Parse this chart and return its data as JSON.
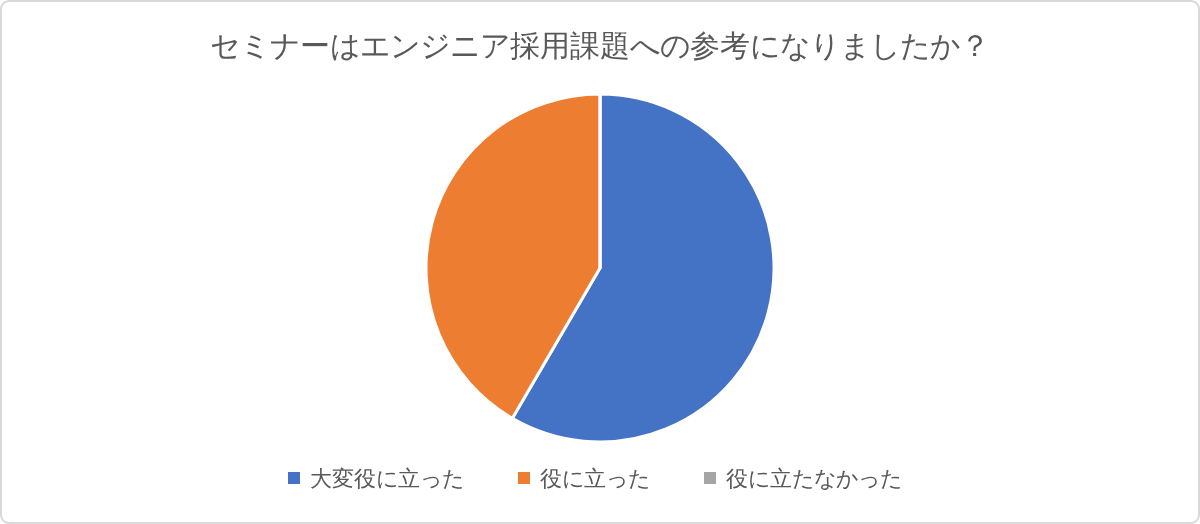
{
  "chart_data": {
    "type": "pie",
    "title": "セミナーはエンジニア採用課題への参考になりましたか？",
    "categories": [
      "大変役に立った",
      "役に立った",
      "役に立たなかった"
    ],
    "values": [
      58.4,
      41.6,
      0
    ],
    "colors": [
      "#4472c4",
      "#ed7d31",
      "#a5a5a5"
    ],
    "legend": "bottom"
  }
}
